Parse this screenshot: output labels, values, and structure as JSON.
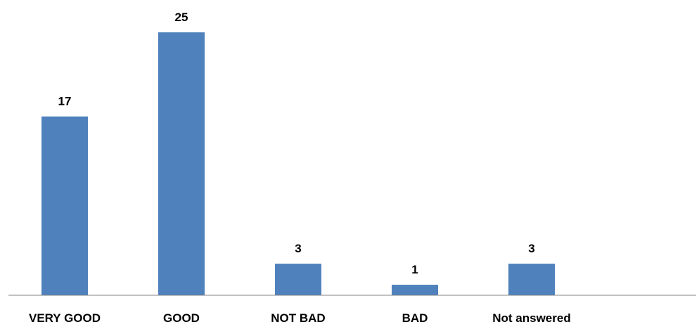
{
  "chart_data": {
    "type": "bar",
    "categories": [
      "VERY GOOD",
      "GOOD",
      "NOT BAD",
      "BAD",
      "Not answered"
    ],
    "values": [
      17,
      25,
      3,
      1,
      3
    ],
    "title": "",
    "xlabel": "",
    "ylabel": "",
    "ylim": [
      0,
      28
    ],
    "grid": false,
    "data_labels": true,
    "colors": {
      "bar": "#4f81bd",
      "axis": "#868686",
      "text": "#000000"
    }
  }
}
